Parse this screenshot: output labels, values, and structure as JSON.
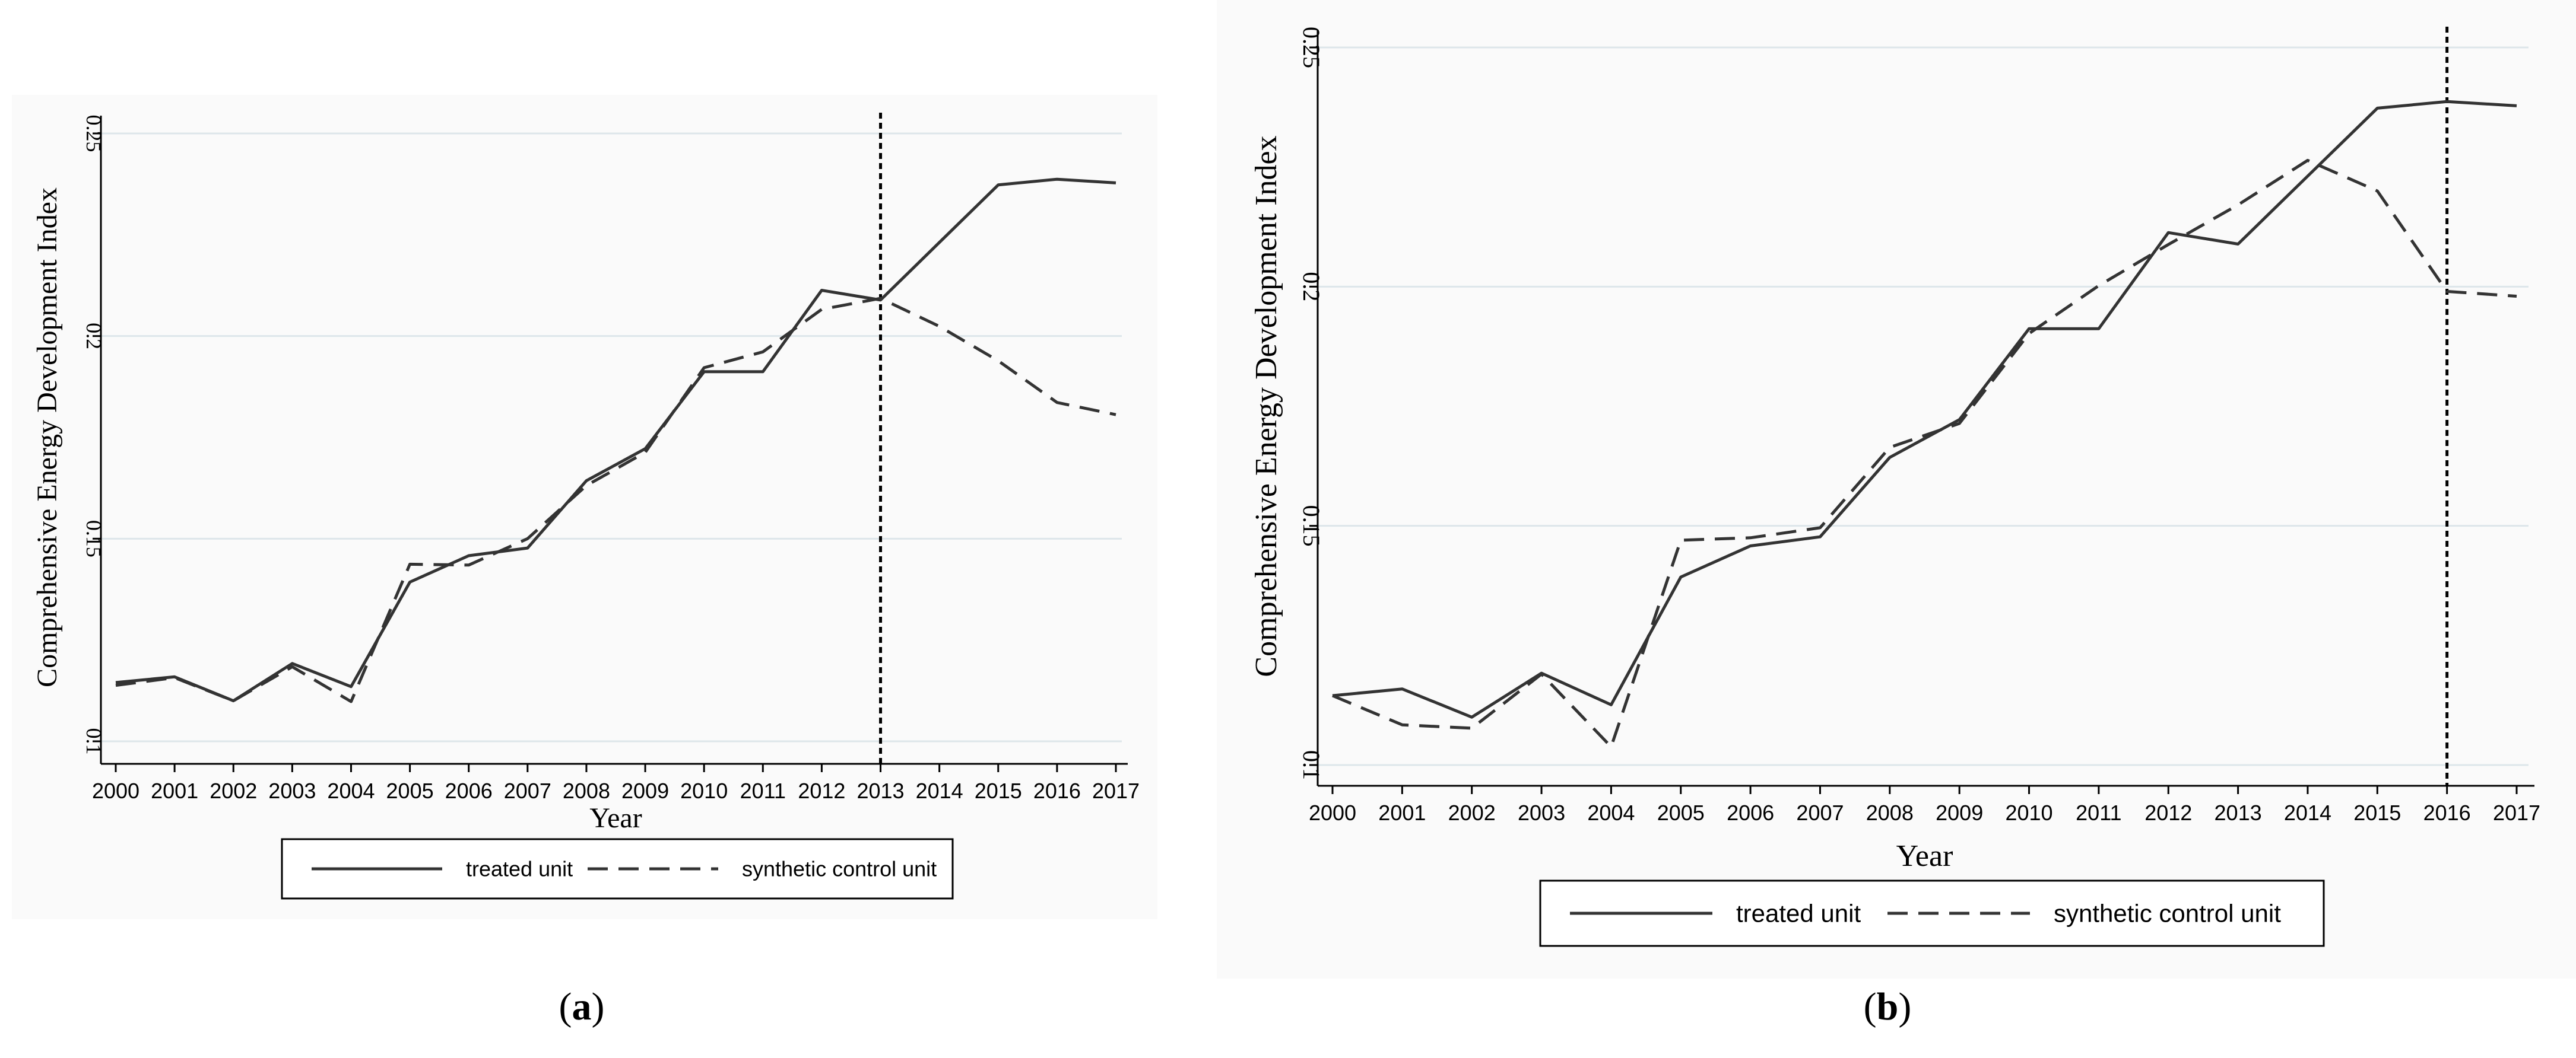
{
  "chart_data": [
    {
      "type": "line",
      "panel_label": "a",
      "title": "",
      "xlabel": "Year",
      "ylabel": "Comprehensive Energy Development Index",
      "ylim": [
        0.1,
        0.25
      ],
      "yticks": [
        "0.1",
        "0.15",
        "0.2",
        "0.25"
      ],
      "grid": true,
      "categories": [
        "2000",
        "2001",
        "2002",
        "2003",
        "2004",
        "2005",
        "2006",
        "2007",
        "2008",
        "2009",
        "2010",
        "2011",
        "2012",
        "2013",
        "2014",
        "2015",
        "2016",
        "2017"
      ],
      "treatment_year": "2013",
      "series": [
        {
          "name": "treated unit",
          "style": "solid",
          "values": [
            0.1145,
            0.1159,
            0.11,
            0.1192,
            0.1135,
            0.1393,
            0.1458,
            0.1477,
            0.1643,
            0.1722,
            0.1912,
            0.1912,
            0.2113,
            0.2089,
            0.2231,
            0.2373,
            0.2387,
            0.2378
          ]
        },
        {
          "name": "synthetic control unit",
          "style": "dashed",
          "values": [
            0.1138,
            0.1157,
            0.11,
            0.1184,
            0.1098,
            0.1437,
            0.1435,
            0.15,
            0.1631,
            0.1713,
            0.1922,
            0.1961,
            0.2066,
            0.2093,
            0.2024,
            0.1939,
            0.1836,
            0.1806
          ]
        }
      ],
      "legend": "bottom"
    },
    {
      "type": "line",
      "panel_label": "b",
      "title": "",
      "xlabel": "Year",
      "ylabel": "Comprehensive Energy Development Index",
      "ylim": [
        0.1,
        0.25
      ],
      "yticks": [
        "0.1",
        "0.15",
        "0.2",
        "0.25"
      ],
      "grid": true,
      "categories": [
        "2000",
        "2001",
        "2002",
        "2003",
        "2004",
        "2005",
        "2006",
        "2007",
        "2008",
        "2009",
        "2010",
        "2011",
        "2012",
        "2013",
        "2014",
        "2015",
        "2016",
        "2017"
      ],
      "treatment_year": "2016",
      "series": [
        {
          "name": "treated unit",
          "style": "solid",
          "values": [
            0.1145,
            0.1159,
            0.11,
            0.1192,
            0.1126,
            0.1393,
            0.1458,
            0.1477,
            0.1643,
            0.1722,
            0.1912,
            0.1912,
            0.2113,
            0.2089,
            0.2231,
            0.2373,
            0.2387,
            0.2378
          ]
        },
        {
          "name": "synthetic control unit",
          "style": "dashed",
          "values": [
            0.1145,
            0.1084,
            0.1077,
            0.119,
            0.1038,
            0.147,
            0.1475,
            0.1496,
            0.1664,
            0.1714,
            0.1902,
            0.2002,
            0.2088,
            0.2171,
            0.2264,
            0.22,
            0.199,
            0.198
          ]
        }
      ],
      "legend": "bottom"
    }
  ]
}
